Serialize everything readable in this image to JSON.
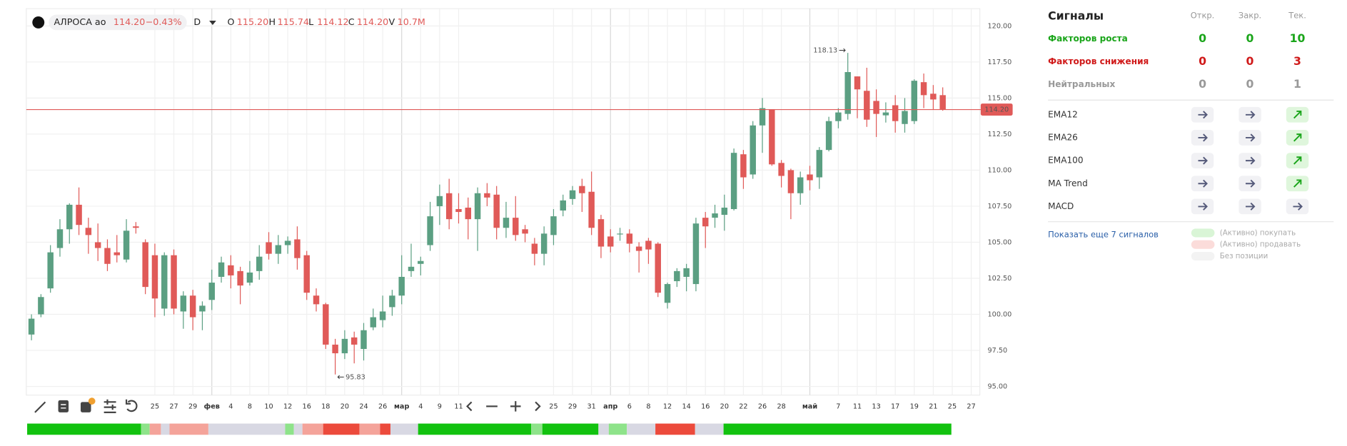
{
  "header": {
    "ticker": "АЛРОСА ао",
    "price": "114.20",
    "change": "−0.43%",
    "interval": "D",
    "o_label": "O",
    "open": "115.20",
    "h_label": "H",
    "high": "115.74",
    "l_label": "L",
    "low": "114.12",
    "c_label": "C",
    "close": "114.20",
    "v_label": "V",
    "volume": "10.7M"
  },
  "chart_data": {
    "type": "candlestick",
    "categories": [
      null,
      null,
      null,
      null,
      null,
      null,
      null,
      null,
      null,
      null,
      null,
      null,
      null,
      "25",
      null,
      "27",
      null,
      "29",
      null,
      "фев",
      null,
      "4",
      null,
      "8",
      null,
      "10",
      null,
      "12",
      null,
      "16",
      null,
      "18",
      null,
      "20",
      null,
      "24",
      null,
      "26",
      null,
      "мар",
      null,
      "4",
      null,
      "9",
      null,
      "11",
      null,
      null,
      null,
      null,
      null,
      null,
      null,
      null,
      null,
      "25",
      null,
      "29",
      null,
      "31",
      null,
      "апр",
      null,
      "6",
      null,
      "8",
      null,
      "12",
      null,
      "14",
      null,
      "16",
      null,
      "20",
      null,
      "22",
      null,
      "26",
      null,
      "28",
      null,
      null,
      "май",
      null,
      null,
      "7",
      null,
      "11",
      null,
      "13",
      null,
      "17",
      null,
      "19",
      null,
      "21",
      null,
      "25",
      null,
      "27"
    ],
    "open": [
      98.6,
      100,
      101.8,
      104.6,
      105.9,
      107.6,
      106.0,
      105.0,
      104.6,
      104.3,
      103.8,
      106.1,
      105.0,
      104.1,
      100.4,
      104.1,
      100.2,
      101.3,
      100.2,
      101.0,
      102.6,
      103.4,
      103.0,
      102.2,
      103.0,
      105.0,
      104.2,
      104.8,
      105.2,
      104.1,
      101.3,
      100.7,
      97.9,
      97.3,
      98.4,
      97.6,
      99.1,
      99.6,
      100.5,
      101.3,
      103.0,
      103.5,
      104.8,
      107.5,
      108.4,
      107.3,
      107.4,
      106.6,
      108.4,
      108.3,
      106.0,
      106.7,
      105.9,
      104.9,
      104.2,
      105.5,
      107.2,
      108.0,
      108.9,
      108.5,
      106.6,
      105.4,
      105.6,
      105.6,
      104.7,
      105.1,
      104.9,
      100.8,
      102.3,
      102.6,
      102.1,
      106.7,
      106.7,
      106.9,
      107.3,
      111.1,
      109.7,
      113.1,
      114.2,
      110.5,
      110.0,
      108.4,
      109.7,
      109.5,
      111.4,
      113.4,
      113.9,
      116.5,
      115.5,
      114.8,
      113.8,
      114.5,
      113.2,
      113.4,
      116.1,
      115.3,
      115.2,
      null,
      null,
      null
    ],
    "high": [
      100,
      101.4,
      104.8,
      106.6,
      107.7,
      108.8,
      106.7,
      106.3,
      105.2,
      105.5,
      106.6,
      106.4,
      105.2,
      104.9,
      104.3,
      104.5,
      101.6,
      101.7,
      100.9,
      103.1,
      104.0,
      104.1,
      103.3,
      103.7,
      104.8,
      105.7,
      105.5,
      105.4,
      106.1,
      104.4,
      101.8,
      100.8,
      98.3,
      98.9,
      98.8,
      99.4,
      100.4,
      101.3,
      101.7,
      104.1,
      104.9,
      104.0,
      107.8,
      109.0,
      109.4,
      108.4,
      108.1,
      108.8,
      109.1,
      108.9,
      107.8,
      108.2,
      106.2,
      105.3,
      106.1,
      107.3,
      108.3,
      108.9,
      109.4,
      109.9,
      106.9,
      105.9,
      106.0,
      105.9,
      105.0,
      105.3,
      105.0,
      102.2,
      103.2,
      103.5,
      106.7,
      107.1,
      107.6,
      108.3,
      111.5,
      111.4,
      113.4,
      115.0,
      114.2,
      110.7,
      110.1,
      109.9,
      110.3,
      111.6,
      113.7,
      114.3,
      118.13,
      116.5,
      117.1,
      115.6,
      114.7,
      115.2,
      115.0,
      116.3,
      116.7,
      115.9,
      115.74,
      null,
      null,
      null
    ],
    "low": [
      98.2,
      99.8,
      101.5,
      104.0,
      104.9,
      105.5,
      104.2,
      103.7,
      103.0,
      103.6,
      103.6,
      105.6,
      101.4,
      99.8,
      99.9,
      100.0,
      99.0,
      98.9,
      98.9,
      100.3,
      102.2,
      101.8,
      100.7,
      102.0,
      102.4,
      103.8,
      103.5,
      104.2,
      103.1,
      101.0,
      100.2,
      97.6,
      95.83,
      96.9,
      96.6,
      96.8,
      98.9,
      99.1,
      99.9,
      100.7,
      102.6,
      102.7,
      104.4,
      106.2,
      105.9,
      106.3,
      105.2,
      104.4,
      107.5,
      105.2,
      105.3,
      105.1,
      105.0,
      103.4,
      103.4,
      104.8,
      106.8,
      107.6,
      107.1,
      105.5,
      103.9,
      104.3,
      105.1,
      104.3,
      102.9,
      103.5,
      101.2,
      100.4,
      101.9,
      101.6,
      101.6,
      104.6,
      106.0,
      105.8,
      107.2,
      108.7,
      109.4,
      111.2,
      110.3,
      108.8,
      106.6,
      107.6,
      108.6,
      108.7,
      111.3,
      112.9,
      113.5,
      113.6,
      113.0,
      112.3,
      113.3,
      112.6,
      112.6,
      113.2,
      114.3,
      114.2,
      114.12,
      null,
      null,
      null
    ],
    "close": [
      99.7,
      101.2,
      104.3,
      105.9,
      107.6,
      106.2,
      105.5,
      104.6,
      103.5,
      104.1,
      105.8,
      106.0,
      101.9,
      101.1,
      104.1,
      100.4,
      101.3,
      99.8,
      100.6,
      102.2,
      103.6,
      102.7,
      102.0,
      102.9,
      104.0,
      104.2,
      104.8,
      105.1,
      103.9,
      101.5,
      100.7,
      97.9,
      97.3,
      98.3,
      97.9,
      98.9,
      99.8,
      100.2,
      101.3,
      102.6,
      103.3,
      103.7,
      106.8,
      108.2,
      106.6,
      107.1,
      106.6,
      108.4,
      108.1,
      106.0,
      106.7,
      105.5,
      105.6,
      104.2,
      105.6,
      106.8,
      107.9,
      108.6,
      108.4,
      106.0,
      104.7,
      104.7,
      105.6,
      104.9,
      104.4,
      104.5,
      101.5,
      102.1,
      103.0,
      103.2,
      106.3,
      106.1,
      107.0,
      107.4,
      111.2,
      109.5,
      113.1,
      114.3,
      110.4,
      109.6,
      108.4,
      109.5,
      109.3,
      111.4,
      113.4,
      114.0,
      116.8,
      115.6,
      113.5,
      113.9,
      114.0,
      113.4,
      114.1,
      116.2,
      115.2,
      114.9,
      114.2,
      null,
      null,
      null
    ],
    "up_color": "#5b9f82",
    "down_color": "#e05a58",
    "ylim": [
      94.4,
      121.2
    ],
    "yticks": [
      {
        "value": 95,
        "label": "95.00"
      },
      {
        "value": 97.5,
        "label": "97.50"
      },
      {
        "value": 100,
        "label": "100.00"
      },
      {
        "value": 102.5,
        "label": "102.50"
      },
      {
        "value": 105,
        "label": "105.00"
      },
      {
        "value": 107.5,
        "label": "107.50"
      },
      {
        "value": 110,
        "label": "110.00"
      },
      {
        "value": 112.5,
        "label": "112.50"
      },
      {
        "value": 115,
        "label": "115.00"
      },
      {
        "value": 117.5,
        "label": "117.50"
      },
      {
        "value": 120,
        "label": "120.00"
      }
    ],
    "grid": true,
    "last_price": {
      "value": 114.2,
      "label": "114.20"
    },
    "max_label": "118.13",
    "min_label": "95.83"
  },
  "signals": {
    "title": "Сигналы",
    "columns": [
      "Откр.",
      "Закр.",
      "Тек."
    ],
    "summary": [
      {
        "name": "Факторов роста",
        "values": [
          0,
          0,
          10
        ]
      },
      {
        "name": "Факторов снижения",
        "values": [
          0,
          0,
          3
        ]
      },
      {
        "name": "Нейтральных",
        "values": [
          0,
          0,
          1
        ]
      }
    ],
    "indicators": [
      "EMA12",
      "EMA26",
      "EMA100",
      "MA Trend",
      "MACD"
    ],
    "more": "Показать еще 7 сигналов",
    "legend": [
      "(Активно) покупать",
      "(Активно) продавать",
      "Без позиции"
    ]
  }
}
